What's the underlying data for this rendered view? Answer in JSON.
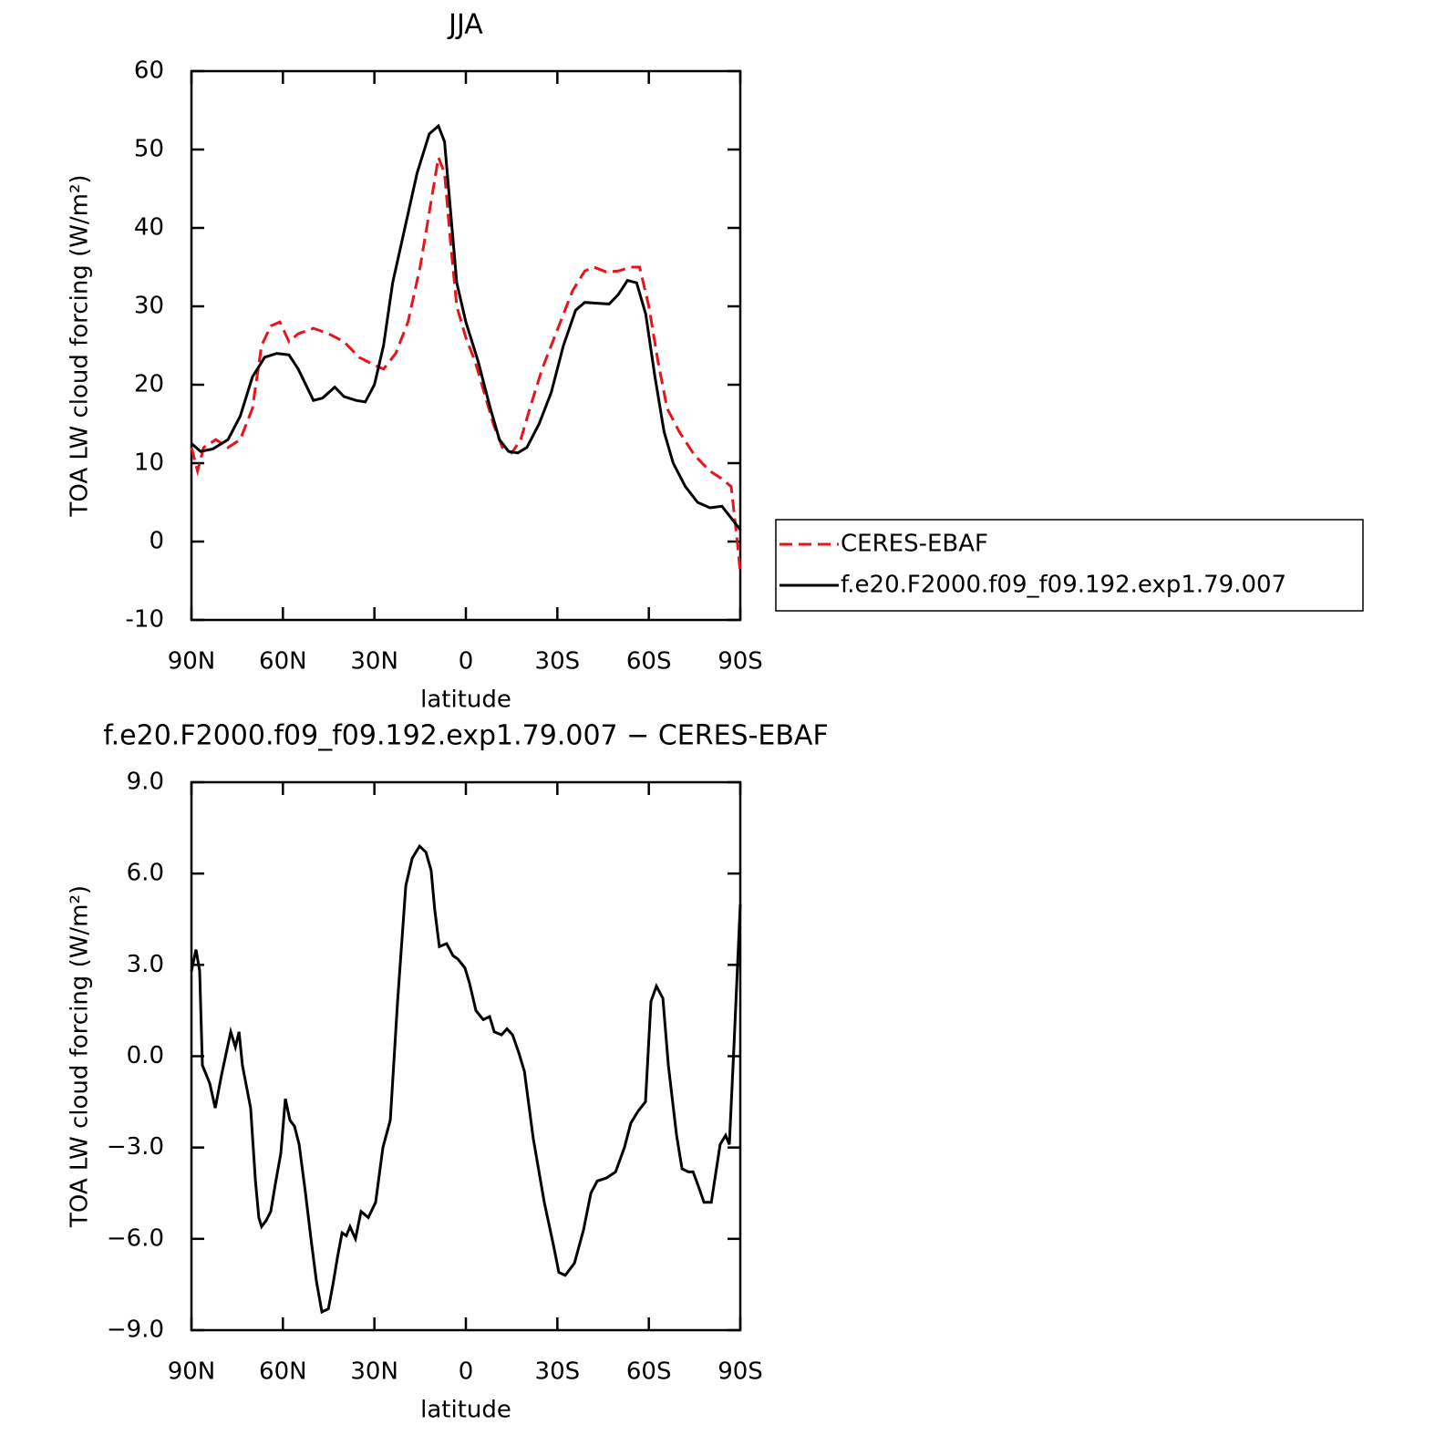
{
  "chart_data": [
    {
      "type": "line",
      "title": "JJA",
      "xlabel": "latitude",
      "ylabel": "TOA LW cloud forcing (W/m²)",
      "xlim": [
        90,
        -90
      ],
      "ylim": [
        -10,
        60
      ],
      "xticks": [
        {
          "value": 90,
          "label": "90N"
        },
        {
          "value": 60,
          "label": "60N"
        },
        {
          "value": 30,
          "label": "30N"
        },
        0,
        {
          "value": -30,
          "label": "30S"
        },
        {
          "value": -60,
          "label": "60S"
        },
        {
          "value": -90,
          "label": "90S"
        }
      ],
      "yticks": [
        -10,
        0,
        10,
        20,
        30,
        40,
        50,
        60
      ],
      "legend": "right",
      "series": [
        {
          "name": "CERES-EBAF",
          "color": "#e8141c",
          "dashed": true,
          "x": [
            90,
            88,
            86,
            82,
            78,
            74,
            70,
            67,
            64,
            61,
            58,
            55,
            50,
            45,
            40,
            35,
            30,
            27,
            23,
            19,
            15,
            12,
            9,
            7,
            5,
            3,
            0,
            -3,
            -6,
            -9,
            -12,
            -15,
            -18,
            -21,
            -25,
            -30,
            -35,
            -39,
            -42,
            -46,
            -50,
            -54,
            -57,
            -60,
            -63,
            -66,
            -70,
            -75,
            -80,
            -84,
            -87,
            -89,
            -90
          ],
          "values": [
            12,
            9,
            12,
            13,
            12,
            13,
            17,
            25,
            27.5,
            28,
            25.5,
            26.5,
            27.2,
            26.5,
            25.5,
            23.5,
            22.5,
            22,
            24,
            28,
            35,
            42,
            49,
            47,
            38,
            30,
            26,
            23,
            19,
            15,
            12,
            11.3,
            13,
            17,
            22,
            27,
            32,
            34.5,
            35,
            34.4,
            34.5,
            35,
            35,
            30,
            23,
            17,
            14,
            11,
            9,
            8,
            7,
            0,
            -4
          ]
        },
        {
          "name": "f.e20.F2000.f09_f09.192.exp1.79.007",
          "color": "#000000",
          "dashed": false,
          "x": [
            90,
            87,
            83,
            78,
            74,
            70,
            66,
            62,
            58,
            55,
            50,
            47,
            43,
            40,
            36,
            33,
            30,
            27,
            24,
            20,
            16,
            12,
            9,
            7,
            5,
            3,
            0,
            -4,
            -8,
            -11,
            -14,
            -17,
            -20,
            -24,
            -28,
            -32,
            -36,
            -39,
            -43,
            -47,
            -50,
            -53,
            -56,
            -59,
            -62,
            -65,
            -68,
            -72,
            -76,
            -80,
            -84,
            -87,
            -90
          ],
          "values": [
            12.5,
            11.5,
            11.8,
            13,
            16,
            21,
            23.5,
            24,
            23.8,
            22,
            18,
            18.3,
            19.7,
            18.5,
            18,
            17.8,
            20,
            25,
            33,
            40,
            47,
            52,
            53,
            51,
            42,
            33,
            28,
            23,
            17,
            13,
            11.5,
            11.3,
            12,
            15,
            19,
            25,
            29.5,
            30.5,
            30.4,
            30.3,
            31.5,
            33.3,
            33,
            29,
            21,
            14,
            10,
            7,
            5,
            4.3,
            4.5,
            3,
            1.5
          ]
        }
      ]
    },
    {
      "type": "line",
      "title": "f.e20.F2000.f09_f09.192.exp1.79.007 − CERES-EBAF",
      "xlabel": "latitude",
      "ylabel": "TOA LW cloud forcing (W/m²)",
      "xlim": [
        90,
        -90
      ],
      "ylim": [
        -9,
        9
      ],
      "xticks": [
        {
          "value": 90,
          "label": "90N"
        },
        {
          "value": 60,
          "label": "60N"
        },
        {
          "value": 30,
          "label": "30N"
        },
        0,
        {
          "value": -30,
          "label": "30S"
        },
        {
          "value": -60,
          "label": "60S"
        },
        {
          "value": -90,
          "label": "90S"
        }
      ],
      "yticks": [
        {
          "value": -9,
          "label": "−9.0"
        },
        {
          "value": -6,
          "label": "−6.0"
        },
        {
          "value": -3,
          "label": "−3.0"
        },
        {
          "value": 0,
          "label": "0.0"
        },
        {
          "value": 3,
          "label": "3.0"
        },
        {
          "value": 6,
          "label": "6.0"
        },
        {
          "value": 9,
          "label": "9.0"
        }
      ],
      "series": [
        {
          "color": "#000000",
          "dashed": false,
          "x": [
            90,
            88.5,
            87.3,
            86.4,
            85.2,
            84,
            82.2,
            80.1,
            77.1,
            75.6,
            74.4,
            73.3,
            70.6,
            69,
            67.9,
            67,
            65.5,
            64,
            62.5,
            60.7,
            59.2,
            57.7,
            56.2,
            54.7,
            52.6,
            50.8,
            49,
            47.2,
            45.1,
            43.6,
            42.1,
            40.6,
            39.2,
            38,
            36.2,
            34.4,
            32,
            29.6,
            27.2,
            24.8,
            22.4,
            19.7,
            17.6,
            15.2,
            13.1,
            11.4,
            10.2,
            8.7,
            6.3,
            4.2,
            2.7,
            0.3,
            -1.2,
            -3.3,
            -5.7,
            -7.8,
            -9.3,
            -11.7,
            -13.5,
            -15.3,
            -17.4,
            -19.2,
            -22.1,
            -25.7,
            -28.7,
            -30.5,
            -32.6,
            -35.6,
            -38.6,
            -41,
            -43.1,
            -46.1,
            -49.1,
            -52,
            -54.1,
            -56.5,
            -58.9,
            -60.7,
            -62.5,
            -64.6,
            -66.4,
            -69.1,
            -70.9,
            -73,
            -74.5,
            -76,
            -78.1,
            -80.5,
            -83.4,
            -85.2,
            -86.4,
            -87.9,
            -90
          ],
          "values": [
            2.8,
            3.5,
            2.8,
            -0.3,
            -0.6,
            -0.9,
            -1.7,
            -0.6,
            0.8,
            0.3,
            0.8,
            -0.3,
            -1.7,
            -4.1,
            -5.3,
            -5.6,
            -5.4,
            -5.1,
            -4.2,
            -3.2,
            -1.4,
            -2.1,
            -2.3,
            -2.9,
            -4.5,
            -6,
            -7.4,
            -8.4,
            -8.3,
            -7.5,
            -6.6,
            -5.8,
            -5.9,
            -5.6,
            -6,
            -5.1,
            -5.3,
            -4.8,
            -3,
            -2.1,
            1.8,
            5.6,
            6.5,
            6.9,
            6.7,
            6.1,
            4.8,
            3.6,
            3.7,
            3.3,
            3.2,
            2.9,
            2.4,
            1.5,
            1.2,
            1.3,
            0.8,
            0.7,
            0.9,
            0.7,
            0.1,
            -0.5,
            -2.7,
            -4.8,
            -6.2,
            -7.1,
            -7.2,
            -6.8,
            -5.7,
            -4.5,
            -4.1,
            -4,
            -3.8,
            -3,
            -2.2,
            -1.8,
            -1.5,
            1.8,
            2.3,
            1.9,
            -0.3,
            -2.6,
            -3.7,
            -3.8,
            -3.8,
            -4.2,
            -4.8,
            -4.8,
            -2.9,
            -2.6,
            -2.9,
            0.3,
            5
          ]
        }
      ]
    }
  ]
}
